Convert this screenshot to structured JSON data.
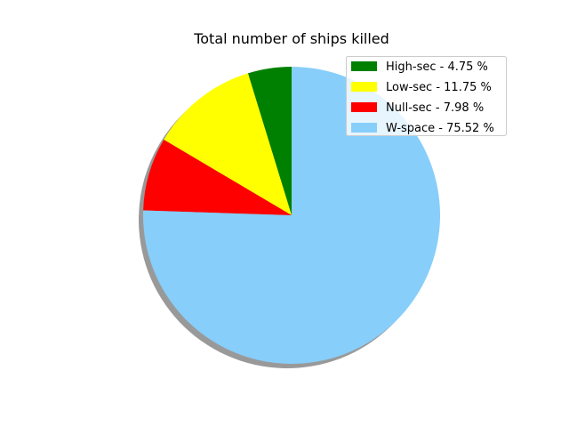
{
  "chart_data": {
    "type": "pie",
    "title": "Total number of ships killed",
    "slices": [
      {
        "label": "High-sec - 4.75 %",
        "name": "High-sec",
        "value": 4.75,
        "color": "#008000"
      },
      {
        "label": "Low-sec - 11.75 %",
        "name": "Low-sec",
        "value": 11.75,
        "color": "#ffff00"
      },
      {
        "label": "Null-sec - 7.98 %",
        "name": "Null-sec",
        "value": 7.98,
        "color": "#ff0000"
      },
      {
        "label": "W-space - 75.52 %",
        "name": "W-space",
        "value": 75.52,
        "color": "#87cefa"
      }
    ],
    "start_angle_deg": 90,
    "direction": "counterclockwise",
    "shadow": true,
    "legend_position": "top-right"
  }
}
